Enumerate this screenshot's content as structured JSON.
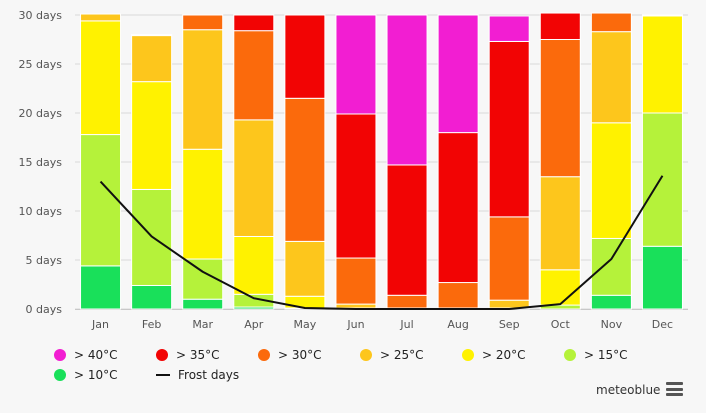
{
  "chart_data": {
    "type": "bar",
    "stacked": true,
    "categories": [
      "Jan",
      "Feb",
      "Mar",
      "Apr",
      "May",
      "Jun",
      "Jul",
      "Aug",
      "Sep",
      "Oct",
      "Nov",
      "Dec"
    ],
    "y_ticks": [
      "0 days",
      "5 days",
      "10 days",
      "15 days",
      "20 days",
      "25 days",
      "30 days"
    ],
    "ylim": [
      0,
      30
    ],
    "grid": true,
    "legend_position": "bottom",
    "series": [
      {
        "name": "> 10°C",
        "color": "#19e05a",
        "values": [
          4.4,
          2.4,
          1.0,
          0.2,
          0,
          0,
          0,
          0,
          0,
          0,
          1.4,
          6.4
        ]
      },
      {
        "name": "> 15°C",
        "color": "#b5f23a",
        "values": [
          13.4,
          9.8,
          4.1,
          1.3,
          0.1,
          0,
          0,
          0,
          0,
          0.4,
          5.8,
          13.6
        ]
      },
      {
        "name": "> 20°C",
        "color": "#fff200",
        "values": [
          11.6,
          11.0,
          11.2,
          5.9,
          1.2,
          0.1,
          0,
          0,
          0.1,
          3.6,
          11.8,
          9.9
        ]
      },
      {
        "name": "> 25°C",
        "color": "#fdc61c",
        "values": [
          0.7,
          4.7,
          12.2,
          11.9,
          5.6,
          0.4,
          0.1,
          0.1,
          0.8,
          9.5,
          9.3,
          0.1
        ]
      },
      {
        "name": "> 30°C",
        "color": "#fb6a0c",
        "values": [
          0,
          0.1,
          1.5,
          9.1,
          14.6,
          4.7,
          1.3,
          2.6,
          8.5,
          14.0,
          1.9,
          0
        ]
      },
      {
        "name": "> 35°C",
        "color": "#f20404",
        "values": [
          0,
          0,
          0,
          1.6,
          8.5,
          14.7,
          13.3,
          15.3,
          17.9,
          2.7,
          0,
          0
        ]
      },
      {
        "name": "> 40°C",
        "color": "#f21ed2",
        "values": [
          0,
          0,
          0,
          0,
          0,
          10.1,
          15.3,
          12.0,
          2.6,
          0,
          0,
          0
        ]
      }
    ],
    "line_series": {
      "name": "Frost days",
      "color": "#111111",
      "values": [
        13.0,
        7.4,
        3.8,
        1.1,
        0.1,
        0,
        0,
        0,
        0,
        0.5,
        5.1,
        13.6
      ]
    }
  },
  "legend": [
    {
      "label": "> 40°C",
      "color": "#f21ed2",
      "kind": "dot"
    },
    {
      "label": "> 35°C",
      "color": "#f20404",
      "kind": "dot"
    },
    {
      "label": "> 30°C",
      "color": "#fb6a0c",
      "kind": "dot"
    },
    {
      "label": "> 25°C",
      "color": "#fdc61c",
      "kind": "dot"
    },
    {
      "label": "> 20°C",
      "color": "#fff200",
      "kind": "dot"
    },
    {
      "label": "> 15°C",
      "color": "#b5f23a",
      "kind": "dot"
    },
    {
      "label": "> 10°C",
      "color": "#19e05a",
      "kind": "dot"
    },
    {
      "label": "Frost days",
      "color": "#111111",
      "kind": "line"
    }
  ],
  "brand": "meteoblue",
  "menu_icon": "hamburger-menu-icon"
}
